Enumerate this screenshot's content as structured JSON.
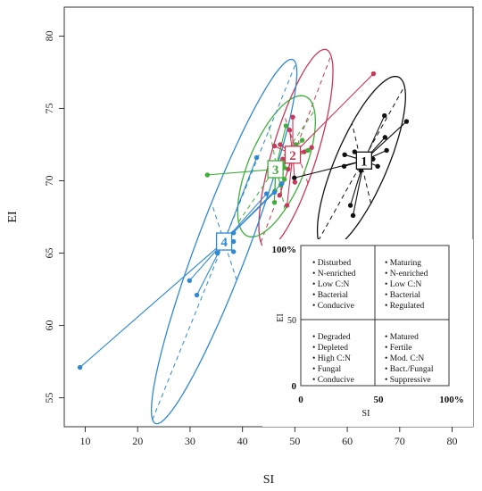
{
  "chart_data": {
    "type": "scatter",
    "xlabel": "SI",
    "ylabel": "EI",
    "xlim": [
      6,
      84
    ],
    "ylim": [
      53,
      82
    ],
    "xticks": [
      "10",
      "20",
      "30",
      "40",
      "50",
      "60",
      "70",
      "80"
    ],
    "yticks": [
      "55",
      "60",
      "65",
      "70",
      "75",
      "80"
    ],
    "xtick_values": [
      10,
      20,
      30,
      40,
      50,
      60,
      70,
      80
    ],
    "ytick_values": [
      55,
      60,
      65,
      70,
      75,
      80
    ],
    "grid": false,
    "series": [
      {
        "label": "1",
        "color": "#111111",
        "centroid": [
          63.2,
          71.4
        ],
        "ellipse": {
          "center": [
            62.7,
            71.2
          ],
          "rx": 9.8,
          "ry": 3.3,
          "angle_deg": 33
        },
        "points": [
          [
            67.1,
            74.5
          ],
          [
            71.3,
            74.1
          ],
          [
            67.2,
            73.0
          ],
          [
            67.5,
            72.1
          ],
          [
            59.5,
            71.8
          ],
          [
            61.4,
            72.0
          ],
          [
            64.9,
            71.5
          ],
          [
            59.4,
            71.0
          ],
          [
            65.8,
            71.0
          ],
          [
            62.6,
            70.7
          ],
          [
            49.9,
            70.2
          ],
          [
            60.6,
            68.3
          ],
          [
            61.1,
            67.6
          ]
        ]
      },
      {
        "label": "2",
        "color": "#c8385a",
        "centroid": [
          49.6,
          71.8
        ],
        "ellipse": {
          "center": [
            50.2,
            72.2
          ],
          "rx": 9.3,
          "ry": 3.3,
          "angle_deg": 44
        },
        "points": [
          [
            65.0,
            77.4
          ],
          [
            49.6,
            74.4
          ],
          [
            49.0,
            73.5
          ],
          [
            47.2,
            72.5
          ],
          [
            46.1,
            72.4
          ],
          [
            53.2,
            72.3
          ],
          [
            48.9,
            72.0
          ],
          [
            51.8,
            72.0
          ],
          [
            47.7,
            71.5
          ],
          [
            48.7,
            70.8
          ],
          [
            50.0,
            69.9
          ],
          [
            47.1,
            69.0
          ],
          [
            48.5,
            68.3
          ]
        ]
      },
      {
        "label": "3",
        "color": "#3fae3b",
        "centroid": [
          46.3,
          70.8
        ],
        "ellipse": {
          "center": [
            46.5,
            71.0
          ],
          "rx": 8.2,
          "ry": 3.4,
          "angle_deg": 28
        },
        "points": [
          [
            33.3,
            70.4
          ],
          [
            48.3,
            73.8
          ],
          [
            51.4,
            72.8
          ],
          [
            50.2,
            72.5
          ],
          [
            52.5,
            72.1
          ],
          [
            47.8,
            71.2
          ],
          [
            48.0,
            70.9
          ],
          [
            48.0,
            70.1
          ],
          [
            47.3,
            69.7
          ],
          [
            46.2,
            69.3
          ],
          [
            46.1,
            68.5
          ]
        ]
      },
      {
        "label": "4",
        "color": "#2f88d4",
        "centroid": [
          36.5,
          65.8
        ],
        "ellipse": {
          "center": [
            36.5,
            65.8
          ],
          "rx": 18.4,
          "ry": 3.6,
          "angle_deg": 42
        },
        "points": [
          [
            9.0,
            57.1
          ],
          [
            29.9,
            63.1
          ],
          [
            31.3,
            62.1
          ],
          [
            35.2,
            65.0
          ],
          [
            38.3,
            65.1
          ],
          [
            38.3,
            65.8
          ],
          [
            38.3,
            66.4
          ],
          [
            42.7,
            71.6
          ],
          [
            44.6,
            69.1
          ],
          [
            46.1,
            69.2
          ],
          [
            47.5,
            69.8
          ]
        ]
      }
    ],
    "inset": {
      "ylabel": "EI",
      "xlabel": "SI",
      "y_top_label": "100%",
      "y_mid_label": "50",
      "y_bottom_label": "0",
      "x_left_label": "0",
      "x_mid_label": "50",
      "x_right_label": "100%",
      "quadrants": {
        "top_left": [
          "Disturbed",
          "N-enriched",
          "Low C:N",
          "Bacterial",
          "Conducive"
        ],
        "top_right": [
          "Maturing",
          "N-enriched",
          "Low C:N",
          "Bacterial",
          "Regulated"
        ],
        "bottom_left": [
          "Degraded",
          "Depleted",
          "High C:N",
          "Fungal",
          "Conducive"
        ],
        "bottom_right": [
          "Matured",
          "Fertile",
          "Mod. C:N",
          "Bact./Fungal",
          "Suppressive"
        ]
      }
    }
  }
}
